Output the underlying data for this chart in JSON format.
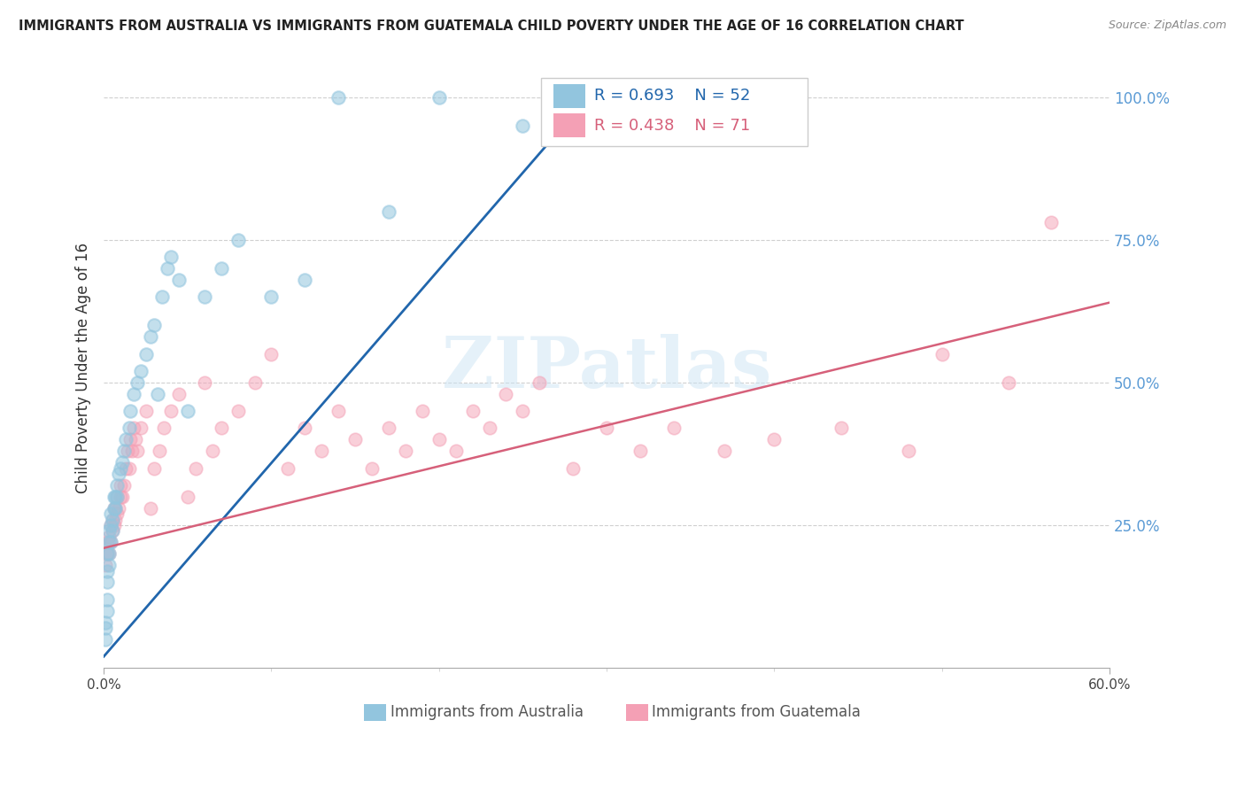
{
  "title": "IMMIGRANTS FROM AUSTRALIA VS IMMIGRANTS FROM GUATEMALA CHILD POVERTY UNDER THE AGE OF 16 CORRELATION CHART",
  "source": "Source: ZipAtlas.com",
  "ylabel": "Child Poverty Under the Age of 16",
  "xlim": [
    0.0,
    0.6
  ],
  "ylim": [
    0.0,
    1.05
  ],
  "xtick_labels": [
    "0.0%",
    "60.0%"
  ],
  "xtick_vals": [
    0.0,
    0.6
  ],
  "yticks_right": [
    0.25,
    0.5,
    0.75,
    1.0
  ],
  "ytick_labels_right": [
    "25.0%",
    "50.0%",
    "75.0%",
    "100.0%"
  ],
  "legend_labels": [
    "Immigrants from Australia",
    "Immigrants from Guatemala"
  ],
  "legend_R_aus": "R = 0.693",
  "legend_N_aus": "N = 52",
  "legend_R_guat": "R = 0.438",
  "legend_N_guat": "N = 71",
  "watermark": "ZIPatlas",
  "australia_color": "#92c5de",
  "guatemala_color": "#f4a0b5",
  "australia_line_color": "#2166ac",
  "guatemala_line_color": "#d6607a",
  "background_color": "#ffffff",
  "grid_color": "#d0d0d0",
  "right_axis_color": "#5b9bd5",
  "aus_line_x0": 0.0,
  "aus_line_y0": 0.02,
  "aus_line_x1": 0.295,
  "aus_line_y1": 1.02,
  "guat_line_x0": 0.0,
  "guat_line_y0": 0.21,
  "guat_line_x1": 0.6,
  "guat_line_y1": 0.64,
  "aus_scatter_x": [
    0.001,
    0.001,
    0.001,
    0.002,
    0.002,
    0.002,
    0.002,
    0.002,
    0.003,
    0.003,
    0.003,
    0.003,
    0.004,
    0.004,
    0.004,
    0.005,
    0.005,
    0.006,
    0.006,
    0.007,
    0.007,
    0.008,
    0.008,
    0.009,
    0.01,
    0.011,
    0.012,
    0.013,
    0.015,
    0.016,
    0.018,
    0.02,
    0.022,
    0.025,
    0.028,
    0.03,
    0.032,
    0.035,
    0.038,
    0.04,
    0.045,
    0.05,
    0.06,
    0.07,
    0.08,
    0.1,
    0.12,
    0.14,
    0.17,
    0.2,
    0.25,
    0.29
  ],
  "aus_scatter_y": [
    0.05,
    0.07,
    0.08,
    0.1,
    0.12,
    0.15,
    0.17,
    0.2,
    0.18,
    0.2,
    0.22,
    0.24,
    0.22,
    0.25,
    0.27,
    0.24,
    0.26,
    0.28,
    0.3,
    0.28,
    0.3,
    0.3,
    0.32,
    0.34,
    0.35,
    0.36,
    0.38,
    0.4,
    0.42,
    0.45,
    0.48,
    0.5,
    0.52,
    0.55,
    0.58,
    0.6,
    0.48,
    0.65,
    0.7,
    0.72,
    0.68,
    0.45,
    0.65,
    0.7,
    0.75,
    0.65,
    0.68,
    1.0,
    0.8,
    1.0,
    0.95,
    1.0
  ],
  "guat_scatter_x": [
    0.001,
    0.002,
    0.002,
    0.003,
    0.003,
    0.004,
    0.004,
    0.005,
    0.005,
    0.006,
    0.006,
    0.007,
    0.007,
    0.008,
    0.008,
    0.009,
    0.01,
    0.01,
    0.011,
    0.012,
    0.013,
    0.014,
    0.015,
    0.016,
    0.017,
    0.018,
    0.019,
    0.02,
    0.022,
    0.025,
    0.028,
    0.03,
    0.033,
    0.036,
    0.04,
    0.045,
    0.05,
    0.055,
    0.06,
    0.065,
    0.07,
    0.08,
    0.09,
    0.1,
    0.11,
    0.12,
    0.13,
    0.14,
    0.15,
    0.16,
    0.17,
    0.18,
    0.19,
    0.2,
    0.21,
    0.22,
    0.23,
    0.24,
    0.25,
    0.26,
    0.28,
    0.3,
    0.32,
    0.34,
    0.37,
    0.4,
    0.44,
    0.48,
    0.5,
    0.54,
    0.565
  ],
  "guat_scatter_y": [
    0.18,
    0.2,
    0.22,
    0.2,
    0.23,
    0.22,
    0.25,
    0.24,
    0.26,
    0.25,
    0.28,
    0.26,
    0.28,
    0.27,
    0.3,
    0.28,
    0.3,
    0.32,
    0.3,
    0.32,
    0.35,
    0.38,
    0.35,
    0.4,
    0.38,
    0.42,
    0.4,
    0.38,
    0.42,
    0.45,
    0.28,
    0.35,
    0.38,
    0.42,
    0.45,
    0.48,
    0.3,
    0.35,
    0.5,
    0.38,
    0.42,
    0.45,
    0.5,
    0.55,
    0.35,
    0.42,
    0.38,
    0.45,
    0.4,
    0.35,
    0.42,
    0.38,
    0.45,
    0.4,
    0.38,
    0.45,
    0.42,
    0.48,
    0.45,
    0.5,
    0.35,
    0.42,
    0.38,
    0.42,
    0.38,
    0.4,
    0.42,
    0.38,
    0.55,
    0.5,
    0.78
  ]
}
